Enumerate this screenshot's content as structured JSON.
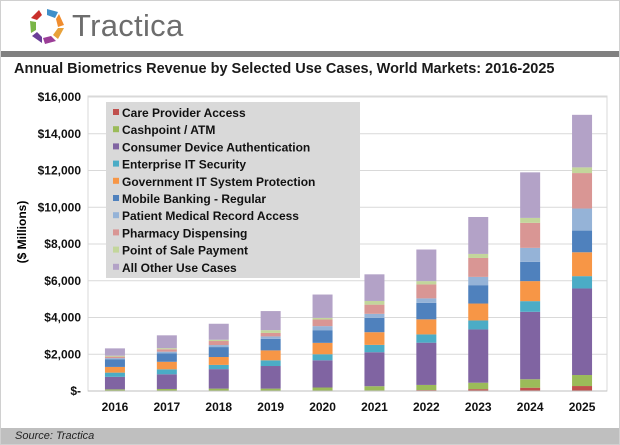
{
  "header": {
    "logo_text": "Tractica"
  },
  "source": "Source: Tractica",
  "chart_data": {
    "type": "bar",
    "stacked": true,
    "title": "Annual Biometrics Revenue by Selected Use Cases, World Markets: 2016-2025",
    "xlabel": "",
    "ylabel": "($ Millions)",
    "ylim": [
      0,
      16000
    ],
    "yticks": [
      "$-",
      "$2,000",
      "$4,000",
      "$6,000",
      "$8,000",
      "$10,000",
      "$12,000",
      "$14,000",
      "$16,000"
    ],
    "grid": true,
    "legend_position": "top-left",
    "categories": [
      "2016",
      "2017",
      "2018",
      "2019",
      "2020",
      "2021",
      "2022",
      "2023",
      "2024",
      "2025"
    ],
    "series": [
      {
        "name": "Care Provider Access",
        "color": "#C0504D",
        "values": [
          10,
          10,
          10,
          10,
          10,
          30,
          50,
          100,
          180,
          270
        ]
      },
      {
        "name": "Cashpoint / ATM",
        "color": "#9BBB59",
        "values": [
          80,
          100,
          120,
          120,
          180,
          230,
          280,
          350,
          460,
          600
        ]
      },
      {
        "name": "Consumer Device Authentication",
        "color": "#8064A2",
        "values": [
          680,
          800,
          1060,
          1230,
          1480,
          1850,
          2300,
          2900,
          3670,
          4710
        ]
      },
      {
        "name": "Enterprise IT Security",
        "color": "#4BACC6",
        "values": [
          230,
          270,
          230,
          310,
          330,
          400,
          450,
          490,
          580,
          670
        ]
      },
      {
        "name": "Government IT System Protection",
        "color": "#F79646",
        "values": [
          310,
          410,
          430,
          540,
          620,
          690,
          820,
          920,
          1090,
          1300
        ]
      },
      {
        "name": "Mobile Banking - Regular",
        "color": "#4F81BD",
        "values": [
          420,
          450,
          540,
          630,
          690,
          780,
          900,
          1000,
          1050,
          1180
        ]
      },
      {
        "name": "Patient Medical Record Access",
        "color": "#95B3D7",
        "values": [
          60,
          100,
          110,
          130,
          220,
          220,
          240,
          450,
          760,
          1200
        ]
      },
      {
        "name": "Pharmacy Dispensing",
        "color": "#D99694",
        "values": [
          80,
          130,
          220,
          190,
          360,
          500,
          760,
          1030,
          1360,
          1930
        ]
      },
      {
        "name": "Point of Sale Payment",
        "color": "#C3D69B",
        "values": [
          50,
          60,
          70,
          150,
          90,
          200,
          180,
          220,
          270,
          310
        ]
      },
      {
        "name": "All Other Use Cases",
        "color": "#B3A2C7",
        "values": [
          400,
          700,
          870,
          1040,
          1270,
          1450,
          1720,
          2010,
          2480,
          2860
        ]
      }
    ]
  }
}
